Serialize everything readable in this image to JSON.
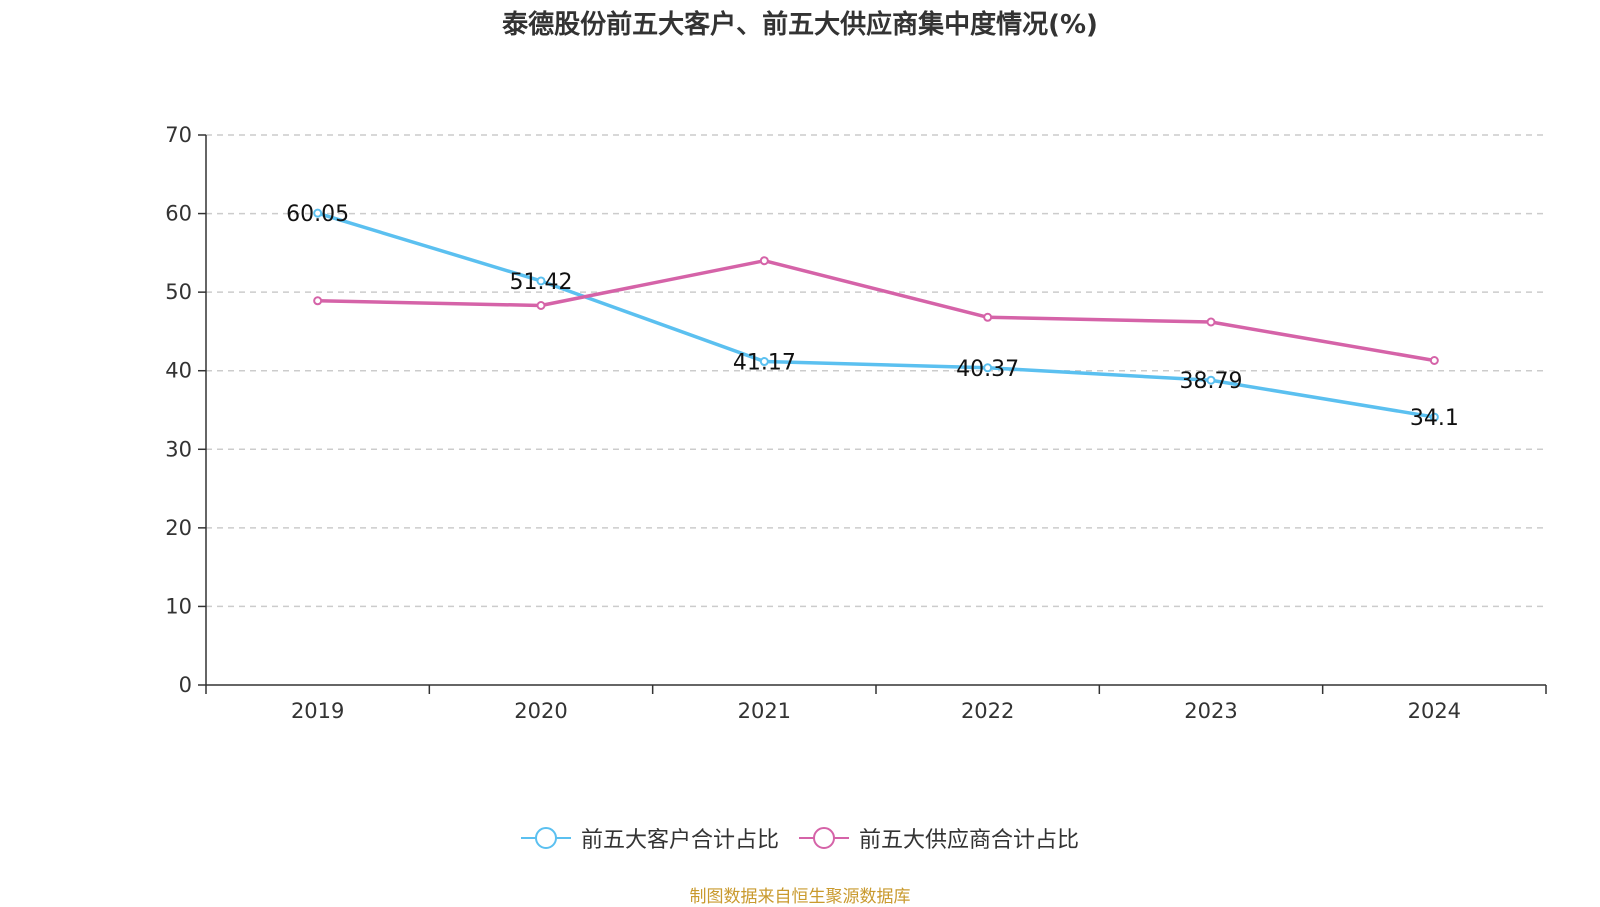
{
  "chart_data": {
    "type": "line",
    "title": "泰德股份前五大客户、前五大供应商集中度情况(%)",
    "categories": [
      "2019",
      "2020",
      "2021",
      "2022",
      "2023",
      "2024"
    ],
    "ylim": [
      0,
      70
    ],
    "yticks": [
      0,
      10,
      20,
      30,
      40,
      50,
      60,
      70
    ],
    "grid": true,
    "legend_position": "bottom-center",
    "series": [
      {
        "name": "前五大客户合计占比",
        "color": "#5bc0f0",
        "values": [
          60.05,
          51.42,
          41.17,
          40.37,
          38.79,
          34.1
        ],
        "labels": [
          "60.05",
          "51.42",
          "41.17",
          "40.37",
          "38.79",
          "34.1"
        ]
      },
      {
        "name": "前五大供应商合计占比",
        "color": "#d563a8",
        "values": [
          48.9,
          48.3,
          54.0,
          46.8,
          46.2,
          41.3
        ]
      }
    ]
  },
  "source": "制图数据来自恒生聚源数据库"
}
